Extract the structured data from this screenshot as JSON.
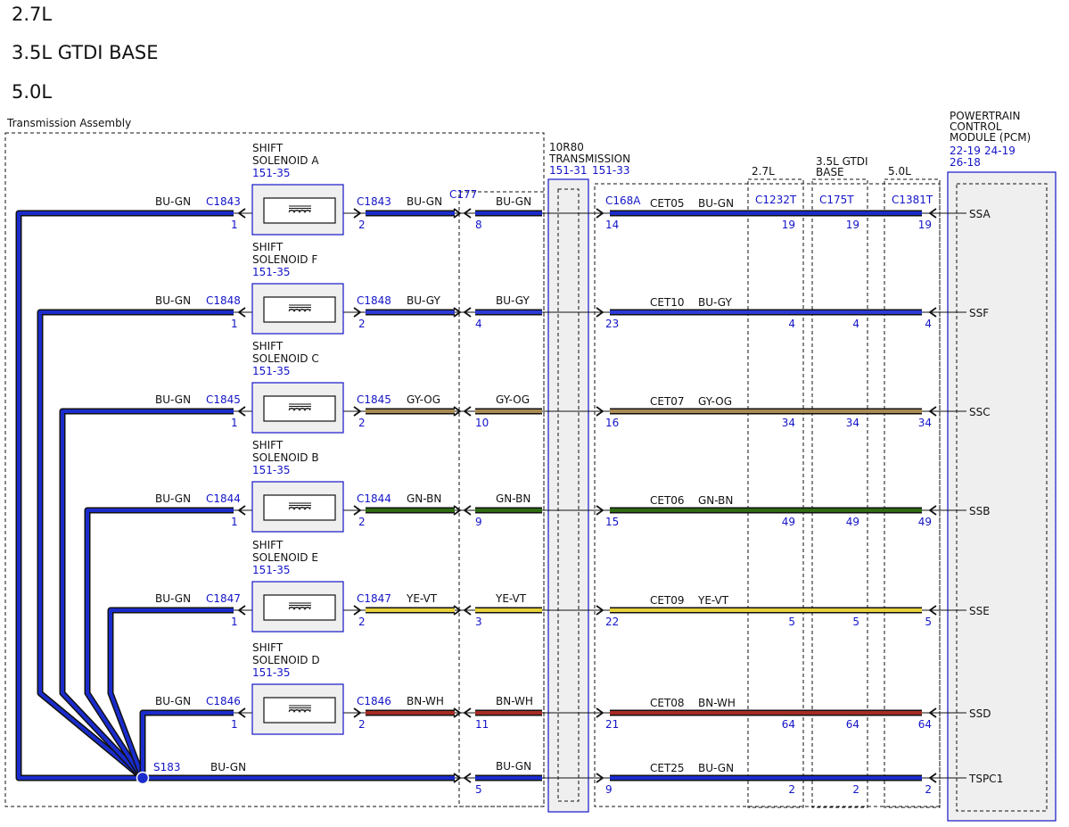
{
  "headers": [
    "2.7L",
    "3.5L GTDI BASE",
    "5.0L"
  ],
  "assembly_label": "Transmission Assembly",
  "solenoid_title": "SHIFT",
  "solenoid_ref": "151-35",
  "trans_connector": {
    "line1": "10R80",
    "line2": "TRANSMISSION",
    "ref1": "151-31",
    "ref2": "151-33"
  },
  "c177": "C177",
  "c168a": "C168A",
  "engine_columns": [
    {
      "label1": "2.7L",
      "label2": "",
      "connector": "C1232T"
    },
    {
      "label1": "3.5L GTDI",
      "label2": "BASE",
      "connector": "C175T"
    },
    {
      "label1": "5.0L",
      "label2": "",
      "connector": "C1381T"
    }
  ],
  "pcm": {
    "lines": [
      "POWERTRAIN",
      "CONTROL",
      "MODULE (PCM)"
    ],
    "ref1": "22-19",
    "ref2": "24-19",
    "ref3": "26-18"
  },
  "splice": {
    "name": "S183",
    "color": "BU-GN"
  },
  "colors": {
    "BU-GN": "#1a2ccc",
    "BU-GY": "#2c3ad6",
    "GY-OG": "#a98a52",
    "GN-BN": "#2e6b12",
    "YE-VT": "#e8d23a",
    "BN-WH": "#a82a24",
    "ref": "#1414c8"
  },
  "circuits": [
    {
      "solenoid": "SOLENOID A",
      "left_color": "BU-GN",
      "connector": "C1843",
      "pin_left": "1",
      "pin_right": "2",
      "color": "BU-GN",
      "c177_pin": "8",
      "c168a_pin": "14",
      "cet": "CET05",
      "engine_pins": [
        "19",
        "19",
        "19"
      ],
      "pcm_pin": "SSA"
    },
    {
      "solenoid": "SOLENOID F",
      "left_color": "BU-GN",
      "connector": "C1848",
      "pin_left": "1",
      "pin_right": "2",
      "color": "BU-GY",
      "c177_pin": "4",
      "c168a_pin": "23",
      "cet": "CET10",
      "engine_pins": [
        "4",
        "4",
        "4"
      ],
      "pcm_pin": "SSF"
    },
    {
      "solenoid": "SOLENOID C",
      "left_color": "BU-GN",
      "connector": "C1845",
      "pin_left": "1",
      "pin_right": "2",
      "color": "GY-OG",
      "c177_pin": "10",
      "c168a_pin": "16",
      "cet": "CET07",
      "engine_pins": [
        "34",
        "34",
        "34"
      ],
      "pcm_pin": "SSC"
    },
    {
      "solenoid": "SOLENOID B",
      "left_color": "BU-GN",
      "connector": "C1844",
      "pin_left": "1",
      "pin_right": "2",
      "color": "GN-BN",
      "c177_pin": "9",
      "c168a_pin": "15",
      "cet": "CET06",
      "engine_pins": [
        "49",
        "49",
        "49"
      ],
      "pcm_pin": "SSB"
    },
    {
      "solenoid": "SOLENOID E",
      "left_color": "BU-GN",
      "connector": "C1847",
      "pin_left": "1",
      "pin_right": "2",
      "color": "YE-VT",
      "c177_pin": "3",
      "c168a_pin": "22",
      "cet": "CET09",
      "engine_pins": [
        "5",
        "5",
        "5"
      ],
      "pcm_pin": "SSE"
    },
    {
      "solenoid": "SOLENOID D",
      "left_color": "BU-GN",
      "connector": "C1846",
      "pin_left": "1",
      "pin_right": "2",
      "color": "BN-WH",
      "c177_pin": "11",
      "c168a_pin": "21",
      "cet": "CET08",
      "engine_pins": [
        "64",
        "64",
        "64"
      ],
      "pcm_pin": "SSD"
    }
  ],
  "tspc": {
    "color": "BU-GN",
    "c177_pin": "5",
    "c168a_pin": "9",
    "cet": "CET25",
    "engine_pins": [
      "2",
      "2",
      "2"
    ],
    "pcm_pin": "TSPC1"
  }
}
